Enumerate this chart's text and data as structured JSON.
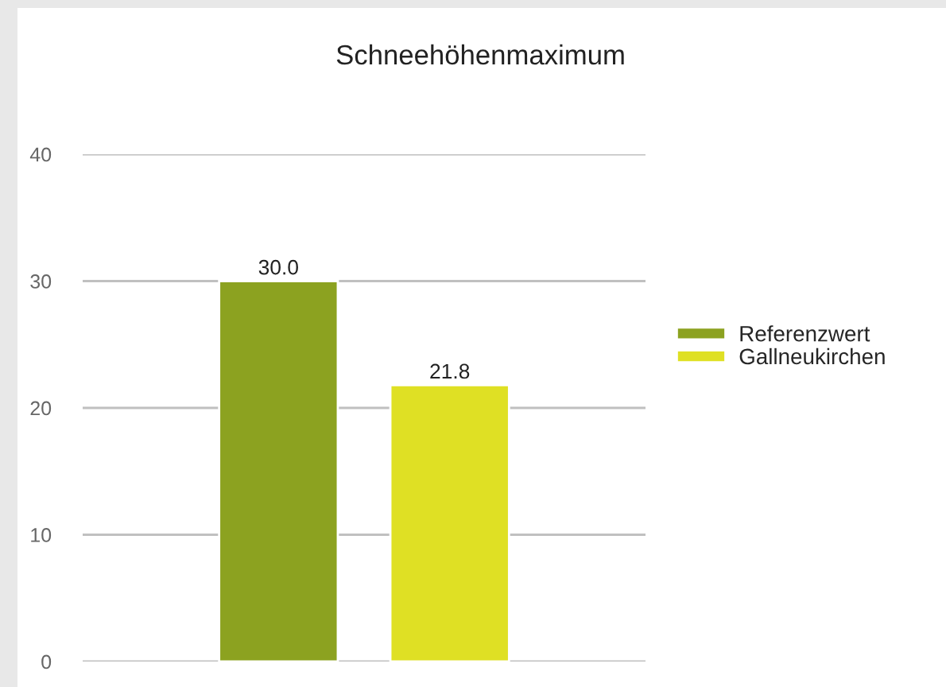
{
  "chart_data": {
    "type": "bar",
    "title": "Schneehöhenmaximum",
    "categories": [
      null
    ],
    "series": [
      {
        "name": "Referenzwert",
        "color": "#8ca220",
        "values": [
          30.0
        ],
        "value_labels": [
          "30.0"
        ]
      },
      {
        "name": "Gallneukirchen",
        "color": "#dfe024",
        "values": [
          21.8
        ],
        "value_labels": [
          "21.8"
        ]
      }
    ],
    "ylim": [
      0,
      40
    ],
    "yticks": [
      0,
      10,
      20,
      30,
      40
    ],
    "grid": "y",
    "legend": "right"
  }
}
